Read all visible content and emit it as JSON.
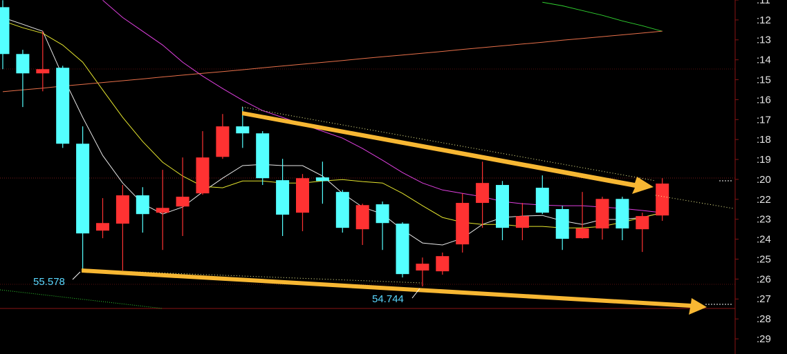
{
  "chart_data": {
    "type": "candlestick",
    "categories": [
      null,
      null,
      null,
      null,
      null,
      null,
      null,
      null,
      null,
      null,
      null,
      null,
      null,
      null,
      null,
      null,
      null,
      null,
      null,
      null,
      null,
      null,
      null,
      null,
      null,
      null,
      null,
      null,
      null,
      null,
      null,
      null,
      null,
      null
    ],
    "open": [
      16.64,
      14.29,
      13.32,
      13.6,
      9.79,
      5.43,
      5.78,
      7.2,
      6.33,
      6.64,
      7.3,
      9.13,
      10.66,
      10.31,
      7.96,
      6.33,
      8.1,
      7.37,
      5.5,
      6.75,
      5.78,
      3.43,
      3.39,
      4.74,
      6.82,
      7.72,
      5.57,
      7.58,
      6.51,
      5.05,
      5.54,
      7.02,
      5.5,
      6.19
    ],
    "high": [
      16.99,
      14.5,
      15.43,
      13.7,
      10.66,
      7.06,
      7.72,
      7.61,
      8.48,
      9.1,
      10.42,
      11.28,
      11.63,
      10.42,
      9.03,
      8.27,
      8.89,
      7.47,
      6.78,
      6.89,
      5.85,
      4.08,
      4.33,
      7.3,
      8.89,
      7.92,
      6.82,
      8.2,
      6.68,
      7.37,
      7.13,
      7.13,
      6.33,
      8.06
    ],
    "low": [
      13.53,
      11.63,
      12.42,
      9.58,
      3.39,
      5.05,
      3.43,
      5.33,
      4.46,
      5.16,
      7.23,
      9.03,
      9.58,
      7.72,
      5.16,
      5.4,
      6.78,
      5.33,
      4.71,
      4.46,
      3.08,
      2.63,
      3.22,
      4.33,
      5.57,
      4.95,
      4.95,
      6.26,
      4.46,
      5.02,
      4.98,
      4.95,
      4.36,
      5.92
    ],
    "close": [
      14.29,
      13.32,
      13.53,
      9.79,
      5.29,
      5.81,
      7.2,
      6.26,
      6.57,
      7.13,
      9.1,
      10.66,
      10.31,
      8.06,
      6.23,
      8.06,
      7.92,
      5.57,
      6.71,
      5.81,
      3.25,
      3.77,
      4.15,
      6.82,
      7.82,
      5.57,
      6.16,
      6.33,
      5.02,
      5.54,
      7.02,
      5.54,
      6.16,
      7.79
    ],
    "up_color": "#ff3232",
    "down_color": "#54ffff",
    "lines": [
      {
        "color": "#e8e8e8",
        "values": [
          16.12,
          15.78,
          15.43,
          13.18,
          11.11,
          9.2,
          7.82,
          6.78,
          6.26,
          6.61,
          7.37,
          8.06,
          8.69,
          8.75,
          8.69,
          8.69,
          8.17,
          7.3,
          6.61,
          6.26,
          5.47,
          4.81,
          4.71,
          5.05,
          5.74,
          6.09,
          6.16,
          6.19,
          5.92,
          5.74,
          5.99,
          5.99,
          6.09,
          6.33
        ]
      },
      {
        "color": "#e6e62e",
        "values": [
          15.95,
          15.61,
          15.33,
          14.74,
          13.88,
          12.49,
          11.11,
          9.9,
          8.86,
          8.17,
          7.65,
          7.58,
          7.92,
          7.92,
          7.82,
          7.82,
          7.92,
          7.99,
          7.89,
          7.82,
          7.3,
          6.68,
          6.09,
          5.85,
          5.74,
          5.74,
          5.64,
          5.64,
          5.57,
          5.57,
          5.64,
          5.85,
          6.09,
          6.33
        ]
      },
      {
        "color": "#e040e0",
        "values": [
          null,
          null,
          null,
          null,
          null,
          16.99,
          16.12,
          15.43,
          14.74,
          13.88,
          13.18,
          12.56,
          11.97,
          11.45,
          11.11,
          10.76,
          10.42,
          10.07,
          9.55,
          8.96,
          8.34,
          7.82,
          7.47,
          7.3,
          7.13,
          6.89,
          6.78,
          6.71,
          6.68,
          6.68,
          6.61,
          6.54,
          6.44,
          6.33
        ]
      },
      {
        "color": "#30d030",
        "values": [
          null,
          null,
          null,
          null,
          null,
          null,
          null,
          null,
          null,
          null,
          null,
          null,
          null,
          null,
          null,
          null,
          null,
          null,
          null,
          null,
          null,
          null,
          null,
          null,
          null,
          null,
          null,
          16.89,
          16.71,
          16.47,
          16.23,
          15.95,
          15.71,
          15.43
        ]
      },
      {
        "color": "#e8704a",
        "values": [
          12.4,
          12.49,
          12.58,
          12.68,
          12.77,
          12.86,
          12.95,
          13.04,
          13.14,
          13.23,
          13.32,
          13.41,
          13.5,
          13.6,
          13.69,
          13.78,
          13.87,
          13.96,
          14.06,
          14.15,
          14.24,
          14.33,
          14.42,
          14.52,
          14.61,
          14.7,
          14.79,
          14.88,
          14.98,
          15.07,
          15.16,
          15.25,
          15.34,
          15.44
        ]
      }
    ],
    "ylim": [
      -0.76,
      17.0
    ],
    "yticks": [
      {
        "value": 17,
        "label": ":11"
      },
      {
        "value": 16,
        "label": ":12"
      },
      {
        "value": 15,
        "label": ":13"
      },
      {
        "value": 14,
        "label": ":14"
      },
      {
        "value": 13,
        "label": ":15"
      },
      {
        "value": 12,
        "label": ":16"
      },
      {
        "value": 11,
        "label": ":17"
      },
      {
        "value": 10,
        "label": ":18"
      },
      {
        "value": 9,
        "label": ":19"
      },
      {
        "value": 8,
        "label": ":20"
      },
      {
        "value": 7,
        "label": ":22"
      },
      {
        "value": 6,
        "label": ":23"
      },
      {
        "value": 5,
        "label": ":24"
      },
      {
        "value": 4,
        "label": ":25"
      },
      {
        "value": 3,
        "label": ":26"
      },
      {
        "value": 2,
        "label": ":27"
      },
      {
        "value": 1,
        "label": ":28"
      },
      {
        "value": 0,
        "label": ":29"
      }
    ],
    "annotations": [
      "55.578",
      "54.744"
    ]
  }
}
